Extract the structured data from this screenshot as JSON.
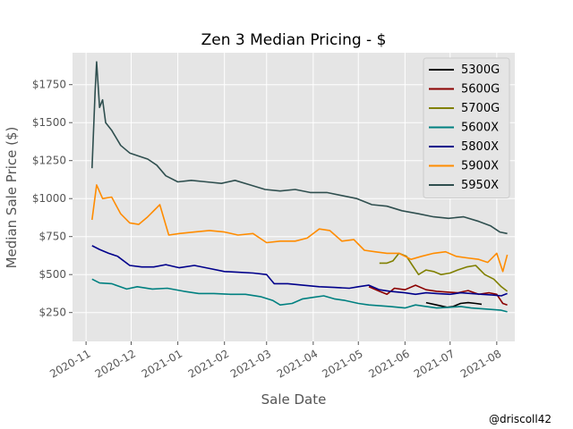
{
  "chart_data": {
    "type": "line",
    "title": "Zen 3 Median Pricing - $",
    "xlabel": "Sale Date",
    "ylabel": "Median Sale Price ($)",
    "x_range": [
      "2020-10-23",
      "2021-08-13"
    ],
    "ylim": [
      60,
      1960
    ],
    "x_ticks": [
      "2020-11-01",
      "2020-12-01",
      "2021-01-01",
      "2021-02-01",
      "2021-03-01",
      "2021-04-01",
      "2021-05-01",
      "2021-06-01",
      "2021-07-01",
      "2021-08-01"
    ],
    "x_tick_labels": [
      "2020-11",
      "2020-12",
      "2021-01",
      "2021-02",
      "2021-03",
      "2021-04",
      "2021-05",
      "2021-06",
      "2021-07",
      "2021-08"
    ],
    "y_ticks": [
      250,
      500,
      750,
      1000,
      1250,
      1500,
      1750
    ],
    "y_tick_labels": [
      "$250",
      "$500",
      "$750",
      "$1000",
      "$1250",
      "$1500",
      "$1750"
    ],
    "grid": true,
    "legend_position": "top-right",
    "series": [
      {
        "name": "5300G",
        "color": "#000000",
        "x": [
          "2021-06-15",
          "2021-06-22",
          "2021-06-29",
          "2021-07-03",
          "2021-07-08",
          "2021-07-13",
          "2021-07-18",
          "2021-07-22"
        ],
        "y": [
          315,
          300,
          285,
          290,
          310,
          315,
          310,
          305
        ]
      },
      {
        "name": "5600G",
        "color": "#8b0000",
        "x": [
          "2021-05-08",
          "2021-05-15",
          "2021-05-20",
          "2021-05-25",
          "2021-06-01",
          "2021-06-08",
          "2021-06-15",
          "2021-06-22",
          "2021-06-29",
          "2021-07-06",
          "2021-07-13",
          "2021-07-20",
          "2021-07-27",
          "2021-08-01",
          "2021-08-05",
          "2021-08-08"
        ],
        "y": [
          420,
          390,
          370,
          410,
          400,
          430,
          400,
          390,
          385,
          380,
          395,
          370,
          380,
          370,
          310,
          300
        ]
      },
      {
        "name": "5700G",
        "color": "#808000",
        "x": [
          "2021-05-15",
          "2021-05-20",
          "2021-05-24",
          "2021-05-28",
          "2021-06-02",
          "2021-06-06",
          "2021-06-10",
          "2021-06-15",
          "2021-06-20",
          "2021-06-25",
          "2021-07-01",
          "2021-07-06",
          "2021-07-12",
          "2021-07-18",
          "2021-07-24",
          "2021-07-30",
          "2021-08-04",
          "2021-08-08"
        ],
        "y": [
          575,
          575,
          590,
          640,
          620,
          560,
          500,
          530,
          520,
          500,
          510,
          530,
          550,
          560,
          500,
          470,
          420,
          390
        ]
      },
      {
        "name": "5600X",
        "color": "#008080",
        "x": [
          "2020-11-05",
          "2020-11-10",
          "2020-11-18",
          "2020-11-28",
          "2020-12-05",
          "2020-12-15",
          "2020-12-25",
          "2021-01-05",
          "2021-01-15",
          "2021-01-25",
          "2021-02-05",
          "2021-02-15",
          "2021-02-25",
          "2021-03-05",
          "2021-03-10",
          "2021-03-18",
          "2021-03-25",
          "2021-04-01",
          "2021-04-08",
          "2021-04-15",
          "2021-04-22",
          "2021-05-01",
          "2021-05-08",
          "2021-05-15",
          "2021-05-22",
          "2021-06-01",
          "2021-06-08",
          "2021-06-15",
          "2021-06-22",
          "2021-07-01",
          "2021-07-08",
          "2021-07-15",
          "2021-07-22",
          "2021-07-29",
          "2021-08-04",
          "2021-08-08"
        ],
        "y": [
          470,
          445,
          440,
          405,
          420,
          405,
          410,
          390,
          375,
          375,
          370,
          370,
          355,
          330,
          300,
          310,
          340,
          350,
          360,
          340,
          330,
          310,
          300,
          295,
          290,
          280,
          300,
          290,
          280,
          285,
          290,
          280,
          275,
          270,
          265,
          255
        ]
      },
      {
        "name": "5800X",
        "color": "#00008b",
        "x": [
          "2020-11-05",
          "2020-11-10",
          "2020-11-16",
          "2020-11-22",
          "2020-11-30",
          "2020-12-08",
          "2020-12-16",
          "2020-12-24",
          "2021-01-02",
          "2021-01-12",
          "2021-01-22",
          "2021-02-01",
          "2021-02-10",
          "2021-02-20",
          "2021-03-01",
          "2021-03-06",
          "2021-03-15",
          "2021-03-25",
          "2021-04-05",
          "2021-04-15",
          "2021-04-25",
          "2021-05-01",
          "2021-05-08",
          "2021-05-15",
          "2021-05-22",
          "2021-06-01",
          "2021-06-08",
          "2021-06-15",
          "2021-06-22",
          "2021-07-01",
          "2021-07-08",
          "2021-07-15",
          "2021-07-22",
          "2021-07-29",
          "2021-08-04",
          "2021-08-08"
        ],
        "y": [
          690,
          665,
          640,
          620,
          560,
          550,
          550,
          565,
          545,
          560,
          540,
          520,
          515,
          510,
          500,
          440,
          440,
          430,
          420,
          415,
          410,
          420,
          430,
          400,
          390,
          380,
          370,
          380,
          375,
          370,
          380,
          375,
          370,
          365,
          360,
          375
        ]
      },
      {
        "name": "5900X",
        "color": "#ff8c00",
        "x": [
          "2020-11-05",
          "2020-11-08",
          "2020-11-12",
          "2020-11-18",
          "2020-11-24",
          "2020-11-30",
          "2020-12-06",
          "2020-12-12",
          "2020-12-20",
          "2020-12-26",
          "2021-01-02",
          "2021-01-12",
          "2021-01-22",
          "2021-02-01",
          "2021-02-10",
          "2021-02-20",
          "2021-03-01",
          "2021-03-10",
          "2021-03-20",
          "2021-03-28",
          "2021-04-05",
          "2021-04-12",
          "2021-04-20",
          "2021-04-28",
          "2021-05-05",
          "2021-05-12",
          "2021-05-20",
          "2021-05-28",
          "2021-06-05",
          "2021-06-12",
          "2021-06-20",
          "2021-06-28",
          "2021-07-05",
          "2021-07-12",
          "2021-07-20",
          "2021-07-26",
          "2021-08-01",
          "2021-08-05",
          "2021-08-08"
        ],
        "y": [
          860,
          1090,
          1000,
          1010,
          900,
          840,
          830,
          880,
          960,
          760,
          770,
          780,
          790,
          780,
          760,
          770,
          710,
          720,
          720,
          740,
          800,
          790,
          720,
          730,
          660,
          650,
          640,
          640,
          600,
          620,
          640,
          650,
          620,
          610,
          600,
          580,
          640,
          520,
          630
        ]
      },
      {
        "name": "5950X",
        "color": "#2f4f4f",
        "x": [
          "2020-11-05",
          "2020-11-07",
          "2020-11-08",
          "2020-11-10",
          "2020-11-12",
          "2020-11-14",
          "2020-11-18",
          "2020-11-24",
          "2020-11-30",
          "2020-12-06",
          "2020-12-12",
          "2020-12-18",
          "2020-12-24",
          "2021-01-01",
          "2021-01-10",
          "2021-01-20",
          "2021-01-30",
          "2021-02-08",
          "2021-02-18",
          "2021-02-28",
          "2021-03-10",
          "2021-03-20",
          "2021-03-30",
          "2021-04-10",
          "2021-04-20",
          "2021-04-30",
          "2021-05-10",
          "2021-05-20",
          "2021-05-30",
          "2021-06-10",
          "2021-06-20",
          "2021-06-30",
          "2021-07-10",
          "2021-07-20",
          "2021-07-28",
          "2021-08-03",
          "2021-08-08"
        ],
        "y": [
          1200,
          1700,
          1900,
          1600,
          1650,
          1500,
          1450,
          1350,
          1300,
          1280,
          1260,
          1220,
          1150,
          1110,
          1120,
          1110,
          1100,
          1120,
          1090,
          1060,
          1050,
          1060,
          1040,
          1040,
          1020,
          1000,
          960,
          950,
          920,
          900,
          880,
          870,
          880,
          850,
          820,
          780,
          770
        ]
      }
    ],
    "credit": "@driscoll42"
  }
}
